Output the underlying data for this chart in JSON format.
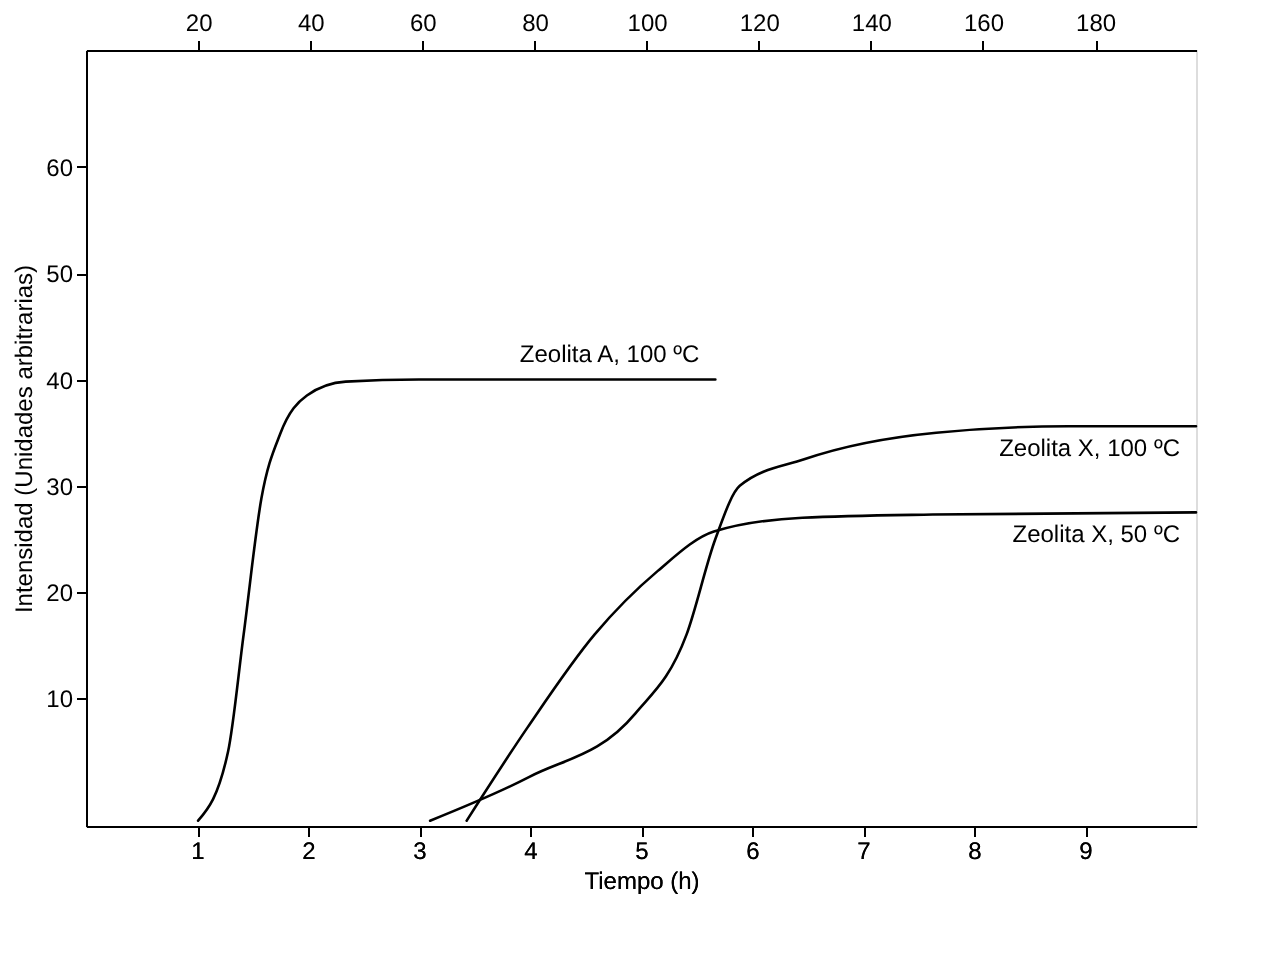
{
  "chart_data": {
    "type": "line",
    "xlabel": "Tiempo (h)",
    "ylabel": "Intensidad (Unidades arbitrarias)",
    "xlim": [
      0,
      10
    ],
    "xticks": [
      1,
      2,
      3,
      4,
      5,
      6,
      7,
      8,
      9
    ],
    "x2lim": [
      0,
      198
    ],
    "x2ticks": [
      20,
      40,
      60,
      80,
      100,
      120,
      140,
      160,
      180
    ],
    "ylim": [
      -2,
      71
    ],
    "yticks": [
      10,
      20,
      30,
      40,
      50,
      60
    ],
    "grid": false,
    "legend": false,
    "marker": "none",
    "line_style": "solid",
    "series": [
      {
        "name": "Zeolita A, 100 ºC",
        "color": "#000000",
        "x": [
          1.01,
          1.28,
          1.42,
          1.58,
          1.75,
          1.99,
          2.34,
          3.0,
          4.0,
          5.67
        ],
        "values": [
          -1.5,
          5,
          16,
          28.8,
          34.9,
          38.5,
          39.8,
          40,
          40,
          40
        ]
      },
      {
        "name": "Zeolita X, 100 ºC",
        "color": "#000000",
        "x": [
          3.1,
          3.99,
          4.95,
          5.41,
          5.67,
          5.89,
          6.47,
          7.66,
          8.85,
          10.0
        ],
        "values": [
          -1.5,
          2.6,
          8.6,
          16,
          25,
          30,
          32.5,
          35,
          35.6,
          35.6
        ]
      },
      {
        "name": "Zeolita X, 50 ºC",
        "color": "#000000",
        "axis": "x2",
        "x": [
          67.9,
          78.8,
          90.7,
          102,
          112,
          127.8,
          151,
          198
        ],
        "values": [
          -1.5,
          7.3,
          16,
          22,
          25.7,
          27,
          27.3,
          27.5
        ]
      }
    ]
  }
}
